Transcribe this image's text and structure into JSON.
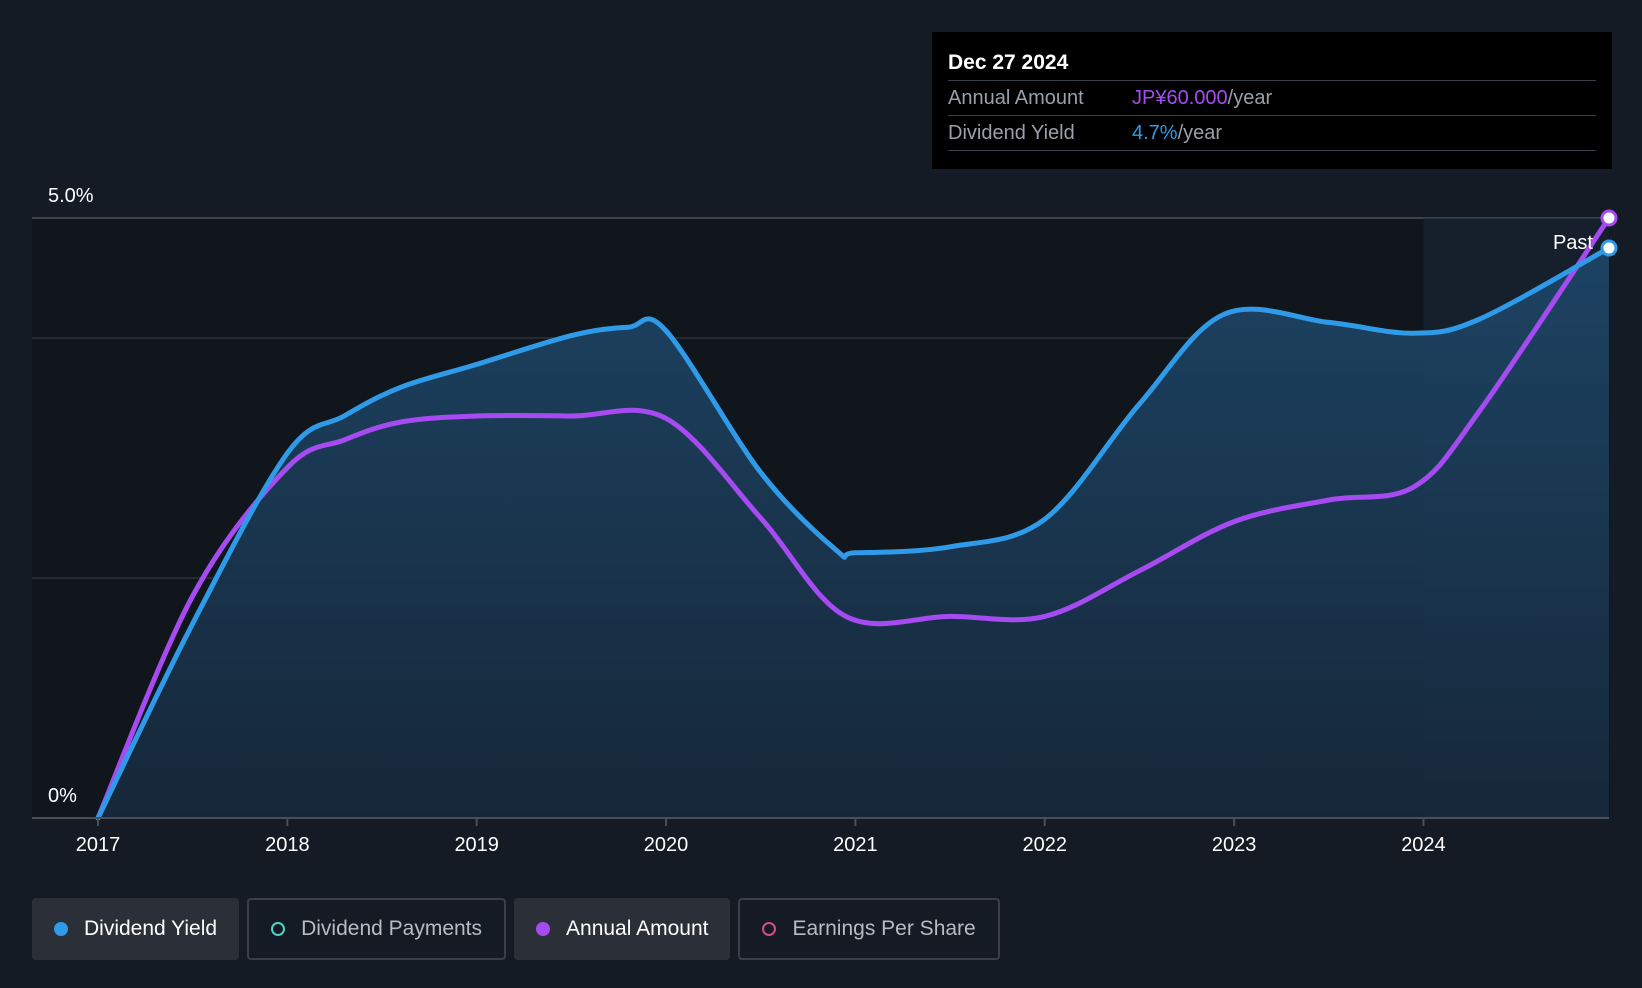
{
  "tooltip": {
    "date": "Dec 27 2024",
    "annual_label": "Annual Amount",
    "annual_value": "JP¥60.000",
    "annual_suffix": "/year",
    "yield_label": "Dividend Yield",
    "yield_value": "4.7%",
    "yield_suffix": "/year"
  },
  "legend": [
    {
      "label": "Dividend Yield",
      "color": "#2f9be8",
      "active": true,
      "filled": true
    },
    {
      "label": "Dividend Payments",
      "color": "#4fd1c5",
      "active": false,
      "filled": false
    },
    {
      "label": "Annual Amount",
      "color": "#a64bf2",
      "active": true,
      "filled": true
    },
    {
      "label": "Earnings Per Share",
      "color": "#d14f8a",
      "active": false,
      "filled": false
    }
  ],
  "chart_data": {
    "type": "line",
    "ytick_labels": [
      "5.0%",
      "0%"
    ],
    "ylim": [
      0,
      5.0
    ],
    "xlim": [
      2017,
      2024.98
    ],
    "xtick_labels": [
      "2017",
      "2018",
      "2019",
      "2020",
      "2021",
      "2022",
      "2023",
      "2024"
    ],
    "past_label": "Past",
    "forecast_start": 2024,
    "colors": {
      "yield": "#2f9be8",
      "annual": "#a64bf2"
    },
    "series": [
      {
        "name": "Dividend Yield",
        "x": [
          2017.0,
          2017.5,
          2018.0,
          2018.3,
          2018.6,
          2019.0,
          2019.5,
          2019.8,
          2020.0,
          2020.5,
          2020.9,
          2021.0,
          2021.5,
          2022.0,
          2022.5,
          2022.95,
          2023.5,
          2023.95,
          2024.3,
          2024.98
        ],
        "y": [
          0.0,
          1.62,
          3.04,
          3.35,
          3.59,
          3.78,
          4.02,
          4.09,
          4.06,
          2.88,
          2.23,
          2.21,
          2.26,
          2.49,
          3.45,
          4.2,
          4.13,
          4.04,
          4.16,
          4.75
        ]
      },
      {
        "name": "Annual Amount",
        "x": [
          2017.0,
          2017.5,
          2018.0,
          2018.3,
          2018.6,
          2019.0,
          2019.5,
          2020.0,
          2020.5,
          2020.95,
          2021.5,
          2022.0,
          2022.5,
          2023.0,
          2023.5,
          2023.95,
          2024.3,
          2024.98
        ],
        "y": [
          0.0,
          1.85,
          2.92,
          3.15,
          3.3,
          3.35,
          3.35,
          3.33,
          2.5,
          1.68,
          1.68,
          1.68,
          2.06,
          2.47,
          2.65,
          2.76,
          3.4,
          5.0
        ]
      }
    ]
  }
}
